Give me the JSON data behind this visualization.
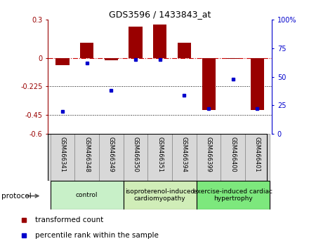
{
  "title": "GDS3596 / 1433843_at",
  "samples": [
    "GSM466341",
    "GSM466348",
    "GSM466349",
    "GSM466350",
    "GSM466351",
    "GSM466394",
    "GSM466399",
    "GSM466400",
    "GSM466401"
  ],
  "red_bars": [
    -0.06,
    0.12,
    -0.02,
    0.245,
    0.265,
    0.12,
    -0.41,
    -0.01,
    -0.41
  ],
  "blue_pct": [
    20,
    62,
    38,
    65,
    65,
    34,
    22,
    48,
    22
  ],
  "red_ylim": [
    -0.6,
    0.3
  ],
  "red_yticks": [
    -0.6,
    -0.45,
    -0.225,
    0.0,
    0.3
  ],
  "red_yticklabels": [
    "-0.6",
    "-0.45",
    "-0.225",
    "0",
    "0.3"
  ],
  "blue_ylim": [
    0,
    100
  ],
  "blue_yticks": [
    0,
    25,
    50,
    75,
    100
  ],
  "blue_yticklabels": [
    "0",
    "25",
    "50",
    "75",
    "100%"
  ],
  "bar_width": 0.55,
  "groups": [
    {
      "label": "control",
      "indices": [
        0,
        1,
        2
      ],
      "color": "#c8f0c8"
    },
    {
      "label": "isoproterenol-induced\ncardiomyopathy",
      "indices": [
        3,
        4,
        5
      ],
      "color": "#d0edb8"
    },
    {
      "label": "exercise-induced cardiac\nhypertrophy",
      "indices": [
        6,
        7,
        8
      ],
      "color": "#7de87d"
    }
  ],
  "legend_red": "transformed count",
  "legend_blue": "percentile rank within the sample",
  "protocol_label": "protocol",
  "red_color": "#990000",
  "blue_color": "#0000cc",
  "dotted_line_color": "#000000",
  "zero_line_color": "#cc0000",
  "label_bg_color": "#d8d8d8",
  "label_border_color": "#888888"
}
